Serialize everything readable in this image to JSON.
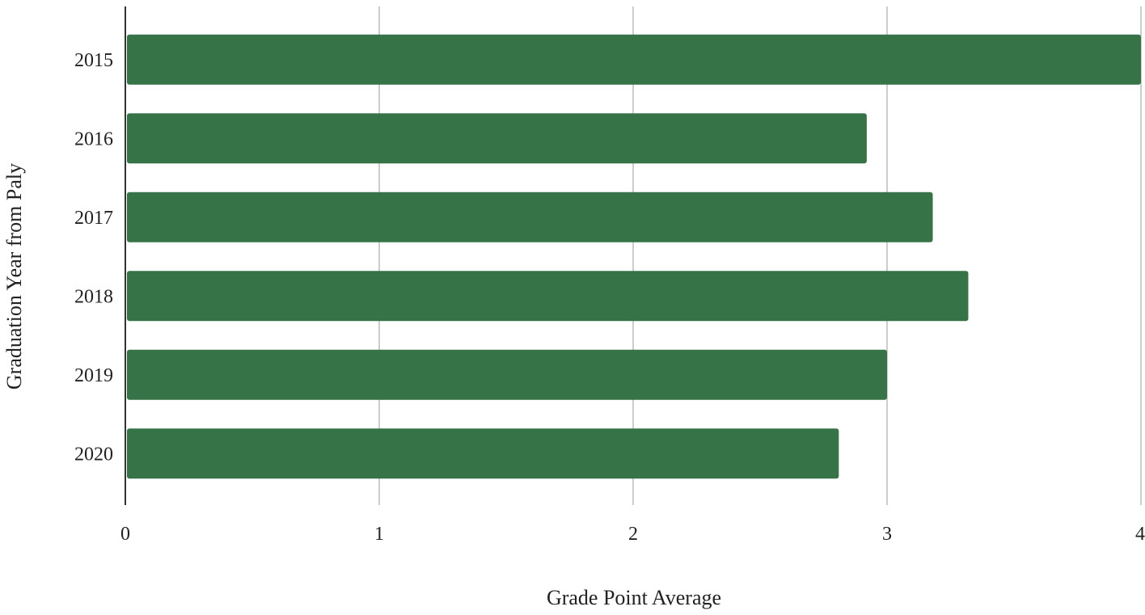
{
  "chart_data": {
    "type": "bar",
    "orientation": "horizontal",
    "title": "",
    "xlabel": "Grade Point Average",
    "ylabel": "Graduation Year from Paly",
    "categories": [
      "2015",
      "2016",
      "2017",
      "2018",
      "2019",
      "2020"
    ],
    "series": [
      {
        "values": [
          4.0,
          2.92,
          3.18,
          3.32,
          3.0,
          2.81
        ]
      }
    ],
    "xlim": [
      0,
      4
    ],
    "xticks": [
      "0",
      "1",
      "2",
      "3",
      "4"
    ],
    "grid": true,
    "legend": "none",
    "colors": {
      "bar": "#367346",
      "grid": "#cccccc",
      "axis": "#333333"
    }
  }
}
